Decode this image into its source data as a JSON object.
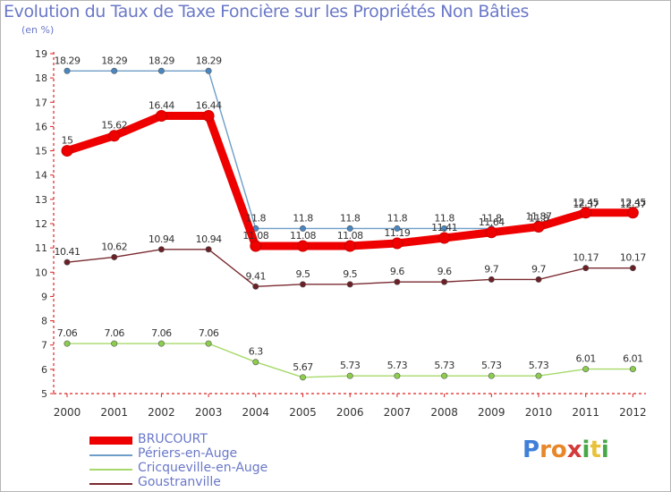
{
  "title": "Evolution du Taux de Taxe Foncière sur les Propriétés Non Bâties",
  "unit_label": "(en %)",
  "logo": {
    "text": "Proxiti",
    "letters": [
      "P",
      "r",
      "o",
      "x",
      "i",
      "t",
      "i"
    ],
    "colors": [
      "#3f7fd8",
      "#e8862a",
      "#e8862a",
      "#d43a3a",
      "#48a848",
      "#e8c23a",
      "#48a848"
    ]
  },
  "chart_data": {
    "type": "line",
    "title": "Evolution du Taux de Taxe Foncière sur les Propriétés Non Bâties",
    "ylabel": "(en %)",
    "xlabel": "",
    "categories": [
      "2000",
      "2001",
      "2002",
      "2003",
      "2004",
      "2005",
      "2006",
      "2007",
      "2008",
      "2009",
      "2010",
      "2011",
      "2012"
    ],
    "ylim": [
      5,
      19
    ],
    "yticks": [
      5,
      6,
      7,
      8,
      9,
      10,
      11,
      12,
      13,
      14,
      15,
      16,
      17,
      18,
      19
    ],
    "grid": false,
    "legend_position": "bottom-left",
    "series": [
      {
        "name": "BRUCOURT",
        "color": "#ee0000",
        "marker_color": "#ee0000",
        "width": 9,
        "values": [
          15,
          15.62,
          16.44,
          16.44,
          11.08,
          11.08,
          11.08,
          11.19,
          11.41,
          11.64,
          11.87,
          12.45,
          12.45
        ],
        "labels": [
          "15",
          "15.62",
          "16.44",
          "16.44",
          "11.08",
          "11.08",
          "11.08",
          "11.19",
          "11.41",
          "11.64",
          "11.87",
          "12.45",
          "12.45"
        ]
      },
      {
        "name": "Périers-en-Auge",
        "color": "#6e9ec8",
        "marker_color": "#4a86c0",
        "width": 1.4,
        "values": [
          18.29,
          18.29,
          18.29,
          18.29,
          11.8,
          11.8,
          11.8,
          11.8,
          11.8,
          11.8,
          11.8,
          12.37,
          12.37
        ],
        "labels": [
          "18.29",
          "18.29",
          "18.29",
          "18.29",
          "11.8",
          "11.8",
          "11.8",
          "11.8",
          "11.8",
          "11.8",
          "11.8",
          "12.37",
          "12.37"
        ]
      },
      {
        "name": "Cricqueville-en-Auge",
        "color": "#a6d96a",
        "marker_color": "#8ccd4e",
        "width": 1.4,
        "values": [
          7.06,
          7.06,
          7.06,
          7.06,
          6.3,
          5.67,
          5.73,
          5.73,
          5.73,
          5.73,
          5.73,
          6.01,
          6.01
        ],
        "labels": [
          "7.06",
          "7.06",
          "7.06",
          "7.06",
          "6.3",
          "5.67",
          "5.73",
          "5.73",
          "5.73",
          "5.73",
          "5.73",
          "6.01",
          "6.01"
        ]
      },
      {
        "name": "Goustranville",
        "color": "#7a2a30",
        "marker_color": "#6b1f26",
        "width": 1.4,
        "values": [
          10.41,
          10.62,
          10.94,
          10.94,
          9.41,
          9.5,
          9.5,
          9.6,
          9.6,
          9.7,
          9.7,
          10.17,
          10.17
        ],
        "labels": [
          "10.41",
          "10.62",
          "10.94",
          "10.94",
          "9.41",
          "9.5",
          "9.5",
          "9.6",
          "9.6",
          "9.7",
          "9.7",
          "10.17",
          "10.17"
        ]
      }
    ]
  }
}
